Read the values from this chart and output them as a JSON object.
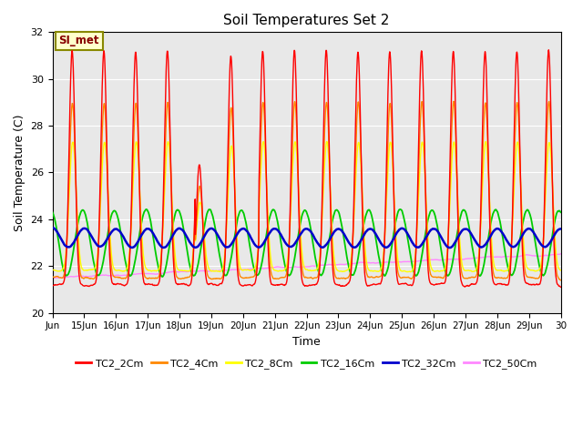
{
  "title": "Soil Temperatures Set 2",
  "xlabel": "Time",
  "ylabel": "Soil Temperature (C)",
  "ylim": [
    20,
    32
  ],
  "yticks": [
    20,
    22,
    24,
    26,
    28,
    30,
    32
  ],
  "background_color": "#e8e8e8",
  "annotation_text": "SI_met",
  "annotation_bg": "#ffffcc",
  "annotation_border": "#888800",
  "series_colors": {
    "TC2_2Cm": "#ff0000",
    "TC2_4Cm": "#ff8800",
    "TC2_8Cm": "#ffff00",
    "TC2_16Cm": "#00cc00",
    "TC2_32Cm": "#0000cc",
    "TC2_50Cm": "#ff88ff"
  },
  "series_linewidth": 1.0,
  "n_points": 1440,
  "x_start": 14.0,
  "x_end": 30.0,
  "xtick_positions": [
    14,
    15,
    16,
    17,
    18,
    19,
    20,
    21,
    22,
    23,
    24,
    25,
    26,
    27,
    28,
    29,
    30
  ],
  "xtick_labels": [
    "Jun",
    "15Jun",
    "16Jun",
    "17Jun",
    "18Jun",
    "19Jun",
    "20Jun",
    "21Jun",
    "22Jun",
    "23Jun",
    "24Jun",
    "25Jun",
    "26Jun",
    "27Jun",
    "28Jun",
    "29Jun",
    "30"
  ],
  "peak_base_2cm": 21.2,
  "peak_amp_2cm": 10.0,
  "peak_base_4cm": 21.5,
  "peak_amp_4cm": 7.5,
  "peak_base_8cm": 21.8,
  "peak_amp_8cm": 5.5,
  "green_base": 23.0,
  "green_amp": 1.4,
  "blue_base": 23.2,
  "blue_amp": 0.4,
  "pink_start": 21.5,
  "pink_end": 22.5,
  "pink_noise": 0.12
}
